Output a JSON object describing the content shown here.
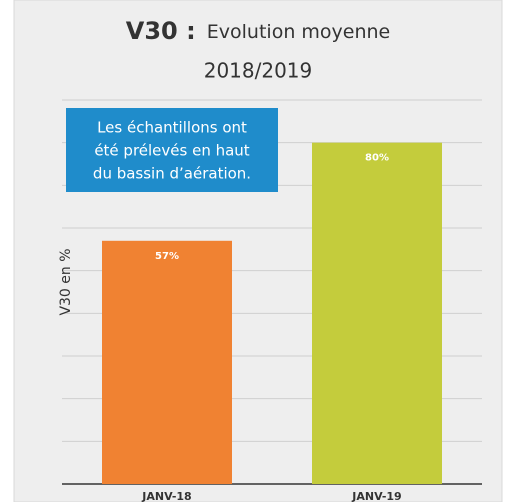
{
  "chart_data": {
    "type": "bar",
    "title_bold": "V30 :",
    "title": "Evolution moyenne",
    "subtitle": "2018/2019",
    "annotation": [
      "Les échantillons ont",
      "été prélevés en haut",
      "du bassin d’aération."
    ],
    "y_label": "V30 en %",
    "categories": [
      "JANV-18",
      "JANV-19"
    ],
    "values": [
      57,
      80
    ],
    "value_labels": [
      "57%",
      "80%"
    ],
    "colors": [
      "#f08232",
      "#c4cc3c"
    ],
    "ylim": [
      0,
      90
    ],
    "yticks": [
      0,
      10,
      20,
      30,
      40,
      50,
      60,
      70,
      80,
      90
    ],
    "grid": true
  }
}
